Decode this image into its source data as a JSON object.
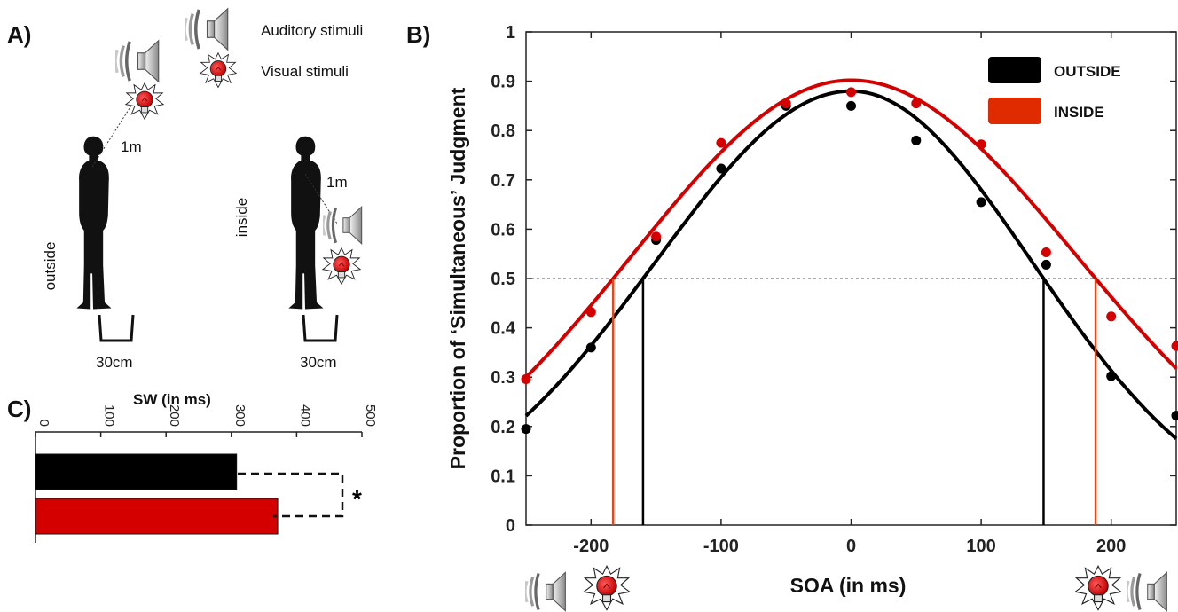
{
  "panel_a": {
    "letter": "A)",
    "legend": {
      "auditory_label": "Auditory stimuli",
      "visual_label": "Visual stimuli",
      "auditory_icon": "speaker-icon",
      "visual_icon": "lightbulb-icon"
    },
    "outside": {
      "label": "outside",
      "distance": "1m",
      "width": "30cm",
      "color": "#b3b3b3"
    },
    "inside": {
      "label": "inside",
      "distance": "1m",
      "width": "30cm",
      "color": "#d0021b"
    }
  },
  "panel_b": {
    "letter": "B)"
  },
  "panel_c": {
    "letter": "C)",
    "significance": "*"
  },
  "colors": {
    "outside": "#000000",
    "inside": "#d40000",
    "inside_legend": "#e02a00",
    "inside_line": "#e04a1a"
  },
  "chart_data": [
    {
      "type": "scatter",
      "panel": "B",
      "xlabel": "SOA (in ms)",
      "ylabel": "Proportion of ‘Simultaneous’ Judgment",
      "xlim": [
        -250,
        250
      ],
      "ylim": [
        0,
        1
      ],
      "xticks": [
        -200,
        -100,
        0,
        100,
        200
      ],
      "xtick_labels": [
        "-200",
        "-100",
        "0",
        "100",
        "200"
      ],
      "yticks": [
        0,
        0.1,
        0.2,
        0.3,
        0.4,
        0.5,
        0.6,
        0.7,
        0.8,
        0.9,
        1
      ],
      "ytick_labels": [
        "0",
        "0.1",
        "0.2",
        "0.3",
        "0.4",
        "0.5",
        "0.6",
        "0.7",
        "0.8",
        "0.9",
        "1"
      ],
      "threshold": 0.5,
      "legend_position": "top-right",
      "grid": false,
      "x": [
        -250,
        -200,
        -150,
        -100,
        -50,
        0,
        50,
        100,
        150,
        200,
        250
      ],
      "series": [
        {
          "name": "OUTSIDE",
          "color": "#000000",
          "values": [
            0.195,
            0.36,
            0.578,
            0.723,
            0.85,
            0.85,
            0.78,
            0.655,
            0.528,
            0.302,
            0.222
          ],
          "fit_peak_soa": 0,
          "fit_peak": 0.88,
          "fit_bounds": [
            -160,
            148
          ]
        },
        {
          "name": "INSIDE",
          "color": "#d40000",
          "values": [
            0.296,
            0.432,
            0.585,
            0.775,
            0.855,
            0.878,
            0.855,
            0.772,
            0.553,
            0.423,
            0.363
          ],
          "fit_peak_soa": 0,
          "fit_peak": 0.902,
          "fit_bounds": [
            -183,
            188
          ]
        }
      ]
    },
    {
      "type": "bar",
      "panel": "C",
      "orientation": "horizontal",
      "xlabel": "SW (in ms)",
      "xlim": [
        0,
        500
      ],
      "xticks": [
        0,
        100,
        200,
        300,
        400,
        500
      ],
      "xtick_labels": [
        "0",
        "100",
        "200",
        "300",
        "400",
        "500"
      ],
      "categories": [
        "OUTSIDE",
        "INSIDE"
      ],
      "values": [
        308,
        371
      ],
      "colors": [
        "#000000",
        "#d40000"
      ]
    }
  ]
}
